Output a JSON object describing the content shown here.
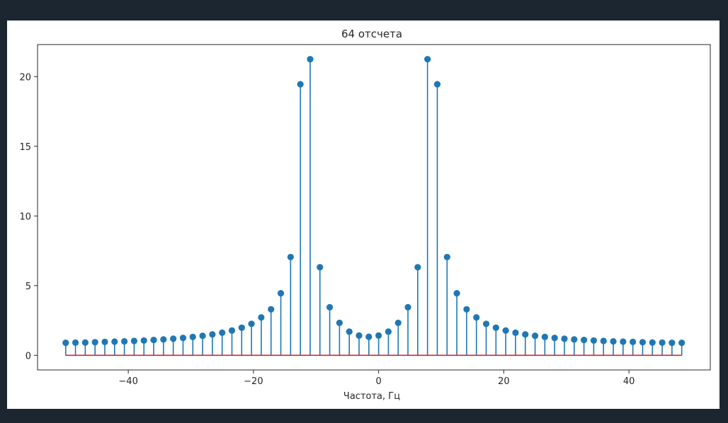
{
  "chart_data": {
    "type": "stem",
    "title": "64 отсчета",
    "xlabel": "Частота, Гц",
    "ylabel": "",
    "xlim": [
      -54.5,
      53
    ],
    "ylim": [
      -1.05,
      22.3
    ],
    "xticks": [
      -40,
      -20,
      0,
      20,
      40
    ],
    "yticks": [
      0,
      5,
      10,
      15,
      20
    ],
    "x_step": 1.5625,
    "x_start": -50,
    "values": [
      0.9,
      0.91,
      0.92,
      0.94,
      0.96,
      0.98,
      1.0,
      1.03,
      1.06,
      1.1,
      1.14,
      1.19,
      1.25,
      1.32,
      1.4,
      1.5,
      1.62,
      1.78,
      1.98,
      2.26,
      2.72,
      3.3,
      4.45,
      7.05,
      19.45,
      21.25,
      6.32,
      3.45,
      2.33,
      1.7,
      1.42,
      1.33,
      1.42,
      1.7,
      2.33,
      3.45,
      6.32,
      21.25,
      19.45,
      7.05,
      4.45,
      3.3,
      2.72,
      2.26,
      1.98,
      1.78,
      1.62,
      1.5,
      1.4,
      1.32,
      1.25,
      1.19,
      1.14,
      1.1,
      1.06,
      1.03,
      1.0,
      0.98,
      0.96,
      0.94,
      0.92,
      0.91,
      0.9,
      0.9
    ],
    "colors": {
      "stem": "#1f77b4",
      "marker": "#1f77b4",
      "baseline": "#d62728",
      "axes": "#262626"
    },
    "grid": false
  }
}
